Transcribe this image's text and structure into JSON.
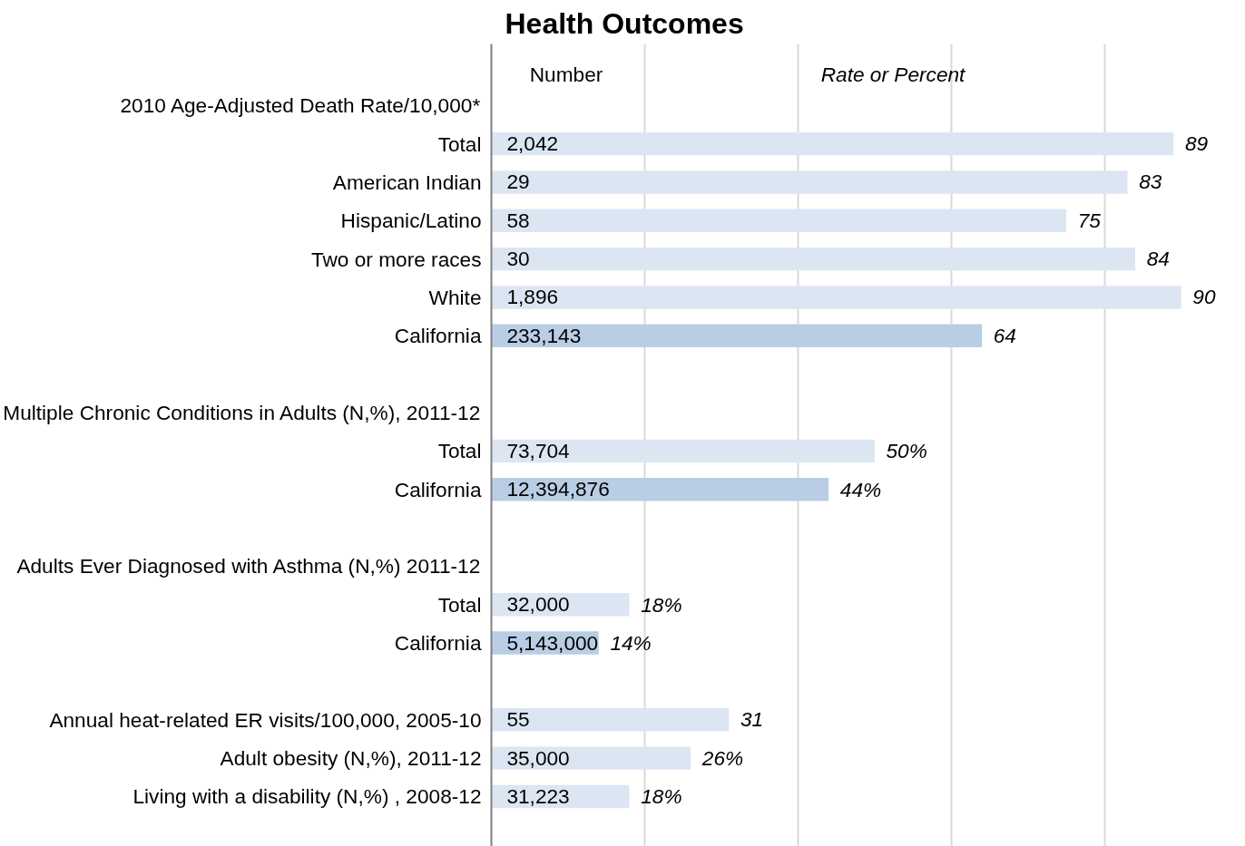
{
  "chart_data": {
    "type": "bar",
    "orientation": "horizontal",
    "title": "Health Outcomes",
    "categories": [
      "2010 Age-Adjusted Death Rate/10,000*",
      "Total",
      "American Indian",
      "Hispanic/Latino",
      "Two or more races",
      "White",
      "California",
      null,
      "Multiple Chronic Conditions in Adults (N,%), 2011-12",
      "Total",
      "California",
      null,
      "Adults Ever Diagnosed with Asthma (N,%) 2011-12",
      "Total",
      "California",
      null,
      "Annual heat-related ER visits/100,000, 2005-10",
      "Adult obesity (N,%), 2011-12",
      "Living with a disability (N,%) , 2008-12"
    ],
    "values": [
      null,
      89,
      83,
      75,
      84,
      90,
      64,
      null,
      null,
      50,
      44,
      null,
      null,
      18,
      14,
      null,
      31,
      26,
      18
    ],
    "colors": [
      "#dce6f2",
      "#dce6f2",
      "#dce6f2",
      "#dce6f2",
      "#dce6f2",
      "#dce6f2",
      "#b9cde5",
      "#dce6f2",
      "#dce6f2",
      "#dce6f2",
      "#b9cde5",
      "#dce6f2",
      "#dce6f2",
      "#dce6f2",
      "#b9cde5",
      "#dce6f2",
      "#dce6f2",
      "#dce6f2",
      "#dce6f2"
    ],
    "value_labels": [
      null,
      "89",
      "83",
      "75",
      "84",
      "90",
      "64",
      null,
      null,
      "50%",
      "44%",
      null,
      null,
      "18%",
      "14%",
      null,
      "31",
      "26%",
      "18%"
    ],
    "annotations": [
      "Number",
      "Rate or Percent",
      "2,042",
      "29",
      "58",
      "30",
      "1,896",
      "233,143",
      "73,704",
      "12,394,876",
      "32,000",
      "5,143,000",
      "55",
      "35,000",
      "31,223"
    ],
    "xticks": [
      {
        "value": 20,
        "label": null
      },
      {
        "value": 40,
        "label": null
      },
      {
        "value": 60,
        "label": null
      },
      {
        "value": 80,
        "label": null
      }
    ],
    "grid": "x",
    "tick_labels": "y"
  }
}
